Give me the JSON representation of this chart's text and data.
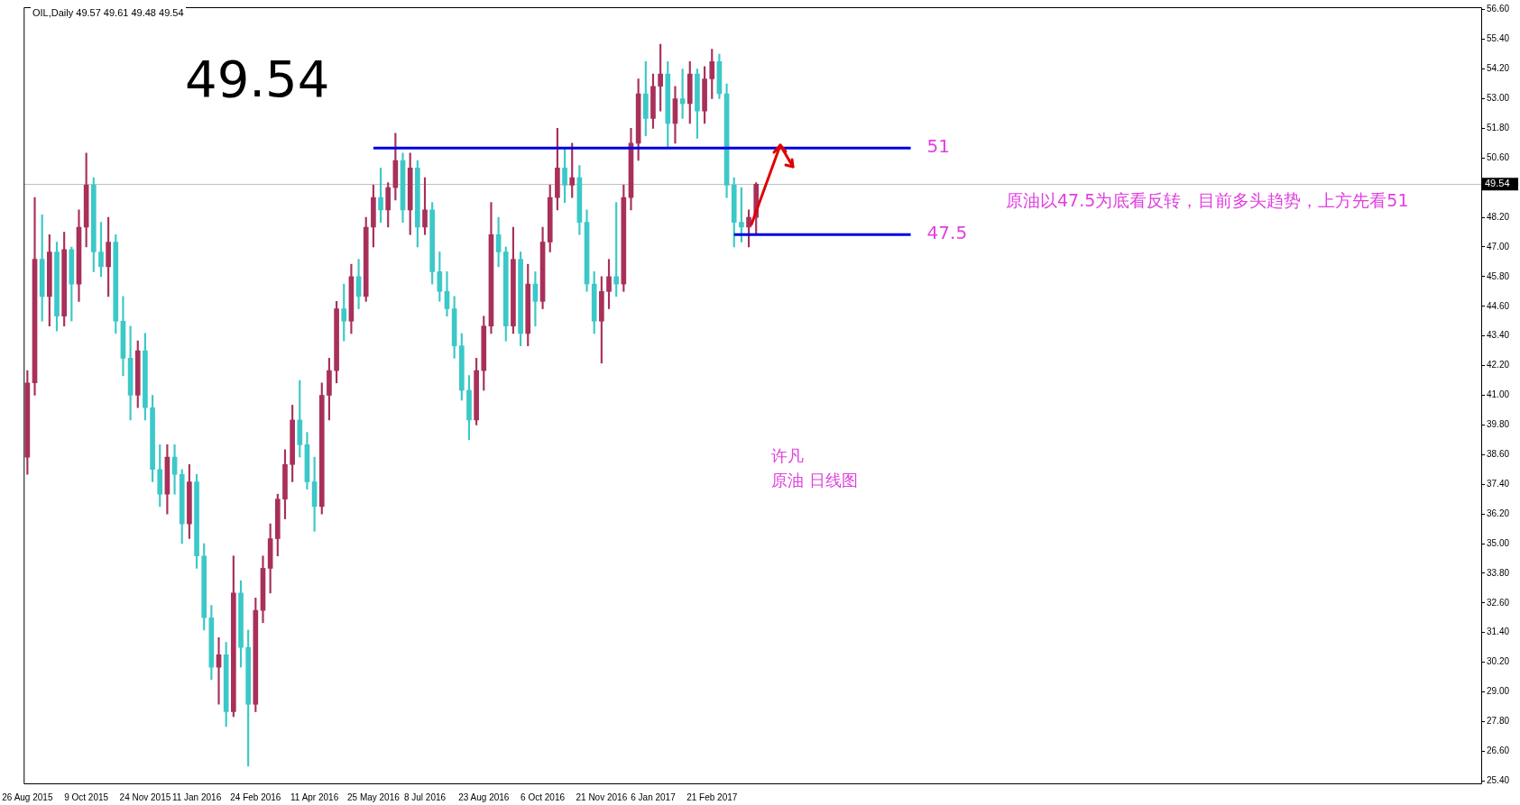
{
  "chart_data": {
    "type": "candlestick",
    "title": "OIL,Daily 49.57 49.61 49.48 49.54",
    "categories": [
      "26 Aug 2015",
      null,
      null,
      null,
      null,
      null,
      null,
      null,
      "9 Oct 2015",
      null,
      null,
      null,
      null,
      null,
      null,
      null,
      "24 Nov 2015",
      null,
      null,
      null,
      null,
      null,
      null,
      "11 Jan 2016",
      null,
      null,
      null,
      null,
      null,
      null,
      null,
      "24 Feb 2016",
      null,
      null,
      null,
      null,
      null,
      null,
      null,
      "11 Apr 2016",
      null,
      null,
      null,
      null,
      null,
      null,
      null,
      "25 May 2016",
      null,
      null,
      null,
      null,
      null,
      null,
      "8 Jul 2016",
      null,
      null,
      null,
      null,
      null,
      null,
      null,
      "23 Aug 2016",
      null,
      null,
      null,
      null,
      null,
      null,
      null,
      "6 Oct 2016",
      null,
      null,
      null,
      null,
      null,
      null,
      null,
      "21 Nov 2016",
      null,
      null,
      null,
      null,
      null,
      null,
      "6 Jan 2017",
      null,
      null,
      null,
      null,
      null,
      null,
      null,
      "21 Feb 2017",
      null,
      null,
      null,
      null,
      null,
      null,
      null,
      null,
      null,
      null,
      null,
      null,
      null,
      null,
      null,
      null,
      null,
      null,
      null,
      null,
      null,
      null,
      null,
      null,
      null,
      null,
      null,
      null,
      null,
      null,
      null,
      null,
      null,
      null,
      null,
      null,
      null,
      null,
      null,
      null,
      null,
      null,
      null,
      null,
      null,
      null,
      null,
      null,
      null,
      null,
      null,
      null,
      null,
      null,
      null,
      null,
      null,
      null,
      null,
      null,
      null,
      null,
      null,
      null,
      null,
      null,
      null,
      null,
      null,
      null,
      null,
      null,
      null,
      null,
      null,
      null,
      null,
      null,
      null,
      null,
      null,
      null,
      null,
      null,
      null,
      null,
      null,
      null,
      null,
      null,
      null,
      null,
      null,
      null,
      null,
      null,
      null,
      null,
      null,
      null,
      null,
      null,
      null,
      null
    ],
    "ohlc": [
      [
        38.5,
        42.0,
        37.8,
        41.5
      ],
      [
        41.5,
        49.0,
        41.0,
        46.5
      ],
      [
        46.5,
        48.3,
        44.0,
        45.0
      ],
      [
        45.0,
        47.5,
        43.8,
        46.8
      ],
      [
        46.8,
        47.2,
        43.6,
        44.2
      ],
      [
        44.2,
        47.6,
        43.8,
        46.9
      ],
      [
        46.9,
        47.0,
        44.0,
        45.5
      ],
      [
        45.5,
        48.5,
        44.8,
        47.8
      ],
      [
        47.8,
        50.8,
        47.0,
        49.5
      ],
      [
        49.5,
        49.8,
        46.0,
        46.8
      ],
      [
        46.8,
        48.0,
        45.8,
        46.2
      ],
      [
        46.2,
        48.2,
        45.0,
        47.2
      ],
      [
        47.2,
        47.5,
        43.5,
        44.0
      ],
      [
        44.0,
        45.0,
        41.8,
        42.5
      ],
      [
        42.5,
        43.8,
        40.0,
        41.0
      ],
      [
        41.0,
        43.2,
        40.5,
        42.8
      ],
      [
        42.8,
        43.5,
        40.0,
        40.5
      ],
      [
        40.5,
        41.0,
        37.5,
        38.0
      ],
      [
        38.0,
        39.0,
        36.5,
        37.0
      ],
      [
        37.0,
        39.0,
        36.2,
        38.5
      ],
      [
        38.5,
        39.0,
        37.0,
        37.8
      ],
      [
        37.8,
        38.0,
        35.0,
        35.8
      ],
      [
        35.8,
        38.2,
        35.2,
        37.5
      ],
      [
        37.5,
        37.8,
        34.0,
        34.5
      ],
      [
        34.5,
        35.0,
        31.5,
        32.0
      ],
      [
        32.0,
        32.5,
        29.5,
        30.0
      ],
      [
        30.0,
        31.2,
        28.5,
        30.5
      ],
      [
        30.5,
        31.0,
        27.6,
        28.2
      ],
      [
        28.2,
        34.5,
        28.0,
        33.0
      ],
      [
        33.0,
        33.5,
        30.0,
        30.8
      ],
      [
        30.8,
        31.5,
        26.0,
        28.5
      ],
      [
        28.5,
        32.8,
        28.2,
        32.3
      ],
      [
        32.3,
        34.5,
        31.8,
        34.0
      ],
      [
        34.0,
        35.8,
        33.0,
        35.2
      ],
      [
        35.2,
        37.0,
        34.5,
        36.8
      ],
      [
        36.8,
        38.8,
        36.0,
        38.2
      ],
      [
        38.2,
        40.6,
        37.5,
        40.0
      ],
      [
        40.0,
        41.6,
        38.5,
        39.0
      ],
      [
        39.0,
        39.5,
        37.2,
        37.5
      ],
      [
        37.5,
        38.5,
        35.5,
        36.5
      ],
      [
        36.5,
        41.5,
        36.2,
        41.0
      ],
      [
        41.0,
        42.5,
        40.0,
        42.0
      ],
      [
        42.0,
        44.8,
        41.5,
        44.5
      ],
      [
        44.5,
        45.5,
        43.2,
        44.0
      ],
      [
        44.0,
        46.3,
        43.5,
        45.8
      ],
      [
        45.8,
        46.5,
        44.5,
        45.0
      ],
      [
        45.0,
        48.2,
        44.8,
        47.8
      ],
      [
        47.8,
        49.5,
        47.0,
        49.0
      ],
      [
        49.0,
        50.2,
        48.0,
        48.5
      ],
      [
        48.5,
        49.6,
        47.8,
        49.4
      ],
      [
        49.4,
        51.6,
        48.9,
        50.5
      ],
      [
        50.5,
        50.8,
        48.0,
        48.5
      ],
      [
        48.5,
        50.8,
        47.5,
        50.2
      ],
      [
        50.2,
        50.5,
        47.0,
        47.8
      ],
      [
        47.8,
        49.8,
        47.5,
        48.5
      ],
      [
        48.5,
        48.8,
        45.5,
        46.0
      ],
      [
        46.0,
        46.8,
        44.8,
        45.2
      ],
      [
        45.2,
        46.0,
        44.2,
        44.5
      ],
      [
        44.5,
        45.0,
        42.5,
        43.0
      ],
      [
        43.0,
        43.5,
        40.8,
        41.2
      ],
      [
        41.2,
        41.8,
        39.2,
        40.0
      ],
      [
        40.0,
        42.5,
        39.8,
        42.0
      ],
      [
        42.0,
        44.2,
        41.2,
        43.8
      ],
      [
        43.8,
        48.8,
        43.5,
        47.5
      ],
      [
        47.5,
        48.2,
        46.2,
        46.8
      ],
      [
        46.8,
        47.0,
        43.2,
        43.8
      ],
      [
        43.8,
        47.8,
        43.5,
        46.5
      ],
      [
        46.5,
        46.8,
        43.0,
        43.5
      ],
      [
        43.5,
        46.3,
        43.0,
        45.5
      ],
      [
        45.5,
        46.0,
        43.8,
        44.8
      ],
      [
        44.8,
        47.8,
        44.5,
        47.2
      ],
      [
        47.2,
        49.5,
        46.8,
        49.0
      ],
      [
        49.0,
        51.8,
        48.5,
        50.2
      ],
      [
        50.2,
        51.0,
        48.8,
        49.5
      ],
      [
        49.5,
        51.2,
        49.0,
        49.8
      ],
      [
        49.8,
        50.3,
        47.5,
        48.0
      ],
      [
        48.0,
        48.5,
        45.2,
        45.5
      ],
      [
        45.5,
        46.0,
        43.5,
        44.0
      ],
      [
        44.0,
        45.8,
        42.3,
        45.2
      ],
      [
        45.2,
        46.5,
        44.5,
        45.8
      ],
      [
        45.8,
        48.8,
        45.0,
        45.5
      ],
      [
        45.5,
        49.5,
        45.2,
        49.0
      ],
      [
        49.0,
        51.8,
        48.5,
        51.2
      ],
      [
        51.2,
        53.8,
        50.5,
        53.2
      ],
      [
        53.2,
        54.5,
        51.5,
        52.2
      ],
      [
        52.2,
        54.0,
        51.8,
        53.5
      ],
      [
        53.5,
        55.2,
        52.5,
        54.0
      ],
      [
        54.0,
        54.5,
        51.0,
        52.0
      ],
      [
        52.0,
        53.5,
        51.2,
        53.0
      ],
      [
        53.0,
        54.2,
        52.2,
        52.8
      ],
      [
        52.8,
        54.5,
        52.0,
        54.0
      ],
      [
        54.0,
        54.2,
        51.4,
        52.5
      ],
      [
        52.5,
        54.3,
        52.0,
        53.8
      ],
      [
        53.8,
        55.0,
        53.0,
        54.5
      ],
      [
        54.5,
        54.8,
        53.0,
        53.2
      ],
      [
        53.2,
        53.6,
        49.0,
        49.5
      ],
      [
        49.5,
        49.8,
        47.0,
        48.0
      ],
      [
        48.0,
        49.4,
        47.2,
        47.8
      ],
      [
        47.8,
        48.5,
        47.0,
        48.2
      ],
      [
        48.2,
        49.6,
        47.5,
        49.54
      ],
      null,
      null,
      null,
      null,
      null,
      null,
      null,
      null,
      null,
      null,
      null,
      null,
      null,
      null,
      null,
      null,
      null,
      null,
      null,
      null,
      null,
      null,
      null,
      null,
      null,
      null,
      null,
      null,
      null,
      null,
      null,
      null,
      null,
      null,
      null,
      null,
      null,
      null,
      null,
      null,
      null,
      null,
      null,
      null,
      null,
      null,
      null,
      null,
      null,
      null,
      null,
      null,
      null,
      null,
      null,
      null,
      null,
      null,
      null,
      null,
      null,
      null,
      null,
      null,
      null,
      null,
      null,
      null,
      null,
      null,
      null,
      null,
      null,
      null,
      null,
      null,
      null,
      null,
      null,
      null,
      null,
      null,
      null,
      null,
      null,
      null,
      null,
      null,
      null,
      null,
      null,
      null,
      null,
      null,
      null,
      null,
      null,
      null
    ],
    "colors": [
      "#a8305a",
      "#a8305a",
      "#3cc8c8",
      "#a8305a",
      "#3cc8c8",
      "#a8305a",
      "#3cc8c8",
      "#a8305a",
      "#a8305a",
      "#3cc8c8",
      "#3cc8c8",
      "#a8305a",
      "#3cc8c8",
      "#3cc8c8",
      "#3cc8c8",
      "#a8305a",
      "#3cc8c8",
      "#3cc8c8",
      "#3cc8c8",
      "#a8305a",
      "#3cc8c8",
      "#3cc8c8",
      "#a8305a",
      "#3cc8c8",
      "#3cc8c8",
      "#3cc8c8",
      "#a8305a",
      "#3cc8c8",
      "#a8305a",
      "#3cc8c8",
      "#3cc8c8",
      "#a8305a",
      "#a8305a",
      "#a8305a",
      "#a8305a",
      "#a8305a",
      "#a8305a",
      "#3cc8c8",
      "#3cc8c8",
      "#3cc8c8",
      "#a8305a",
      "#a8305a",
      "#a8305a",
      "#3cc8c8",
      "#a8305a",
      "#3cc8c8",
      "#a8305a",
      "#a8305a",
      "#3cc8c8",
      "#a8305a",
      "#a8305a",
      "#3cc8c8",
      "#a8305a",
      "#3cc8c8",
      "#a8305a",
      "#3cc8c8",
      "#3cc8c8",
      "#3cc8c8",
      "#3cc8c8",
      "#3cc8c8",
      "#3cc8c8",
      "#a8305a",
      "#a8305a",
      "#a8305a",
      "#3cc8c8",
      "#3cc8c8",
      "#a8305a",
      "#3cc8c8",
      "#a8305a",
      "#3cc8c8",
      "#a8305a",
      "#a8305a",
      "#a8305a",
      "#3cc8c8",
      "#a8305a",
      "#3cc8c8",
      "#3cc8c8",
      "#3cc8c8",
      "#a8305a",
      "#a8305a",
      "#3cc8c8",
      "#a8305a",
      "#a8305a",
      "#a8305a",
      "#3cc8c8",
      "#a8305a",
      "#a8305a",
      "#3cc8c8",
      "#a8305a",
      "#3cc8c8",
      "#a8305a",
      "#3cc8c8",
      "#a8305a",
      "#a8305a",
      "#3cc8c8",
      "#3cc8c8",
      "#3cc8c8",
      "#3cc8c8",
      "#a8305a",
      "#a8305a",
      null,
      null,
      null,
      null,
      null,
      null,
      null,
      null,
      null,
      null,
      null,
      null,
      null,
      null,
      null,
      null,
      null,
      null,
      null,
      null,
      null,
      null,
      null,
      null,
      null,
      null,
      null,
      null,
      null,
      null,
      null,
      null,
      null,
      null,
      null,
      null,
      null,
      null,
      null,
      null,
      null,
      null,
      null,
      null,
      null,
      null,
      null,
      null,
      null,
      null,
      null,
      null,
      null,
      null,
      null,
      null,
      null,
      null,
      null,
      null,
      null,
      null,
      null,
      null,
      null,
      null,
      null,
      null,
      null,
      null,
      null,
      null,
      null,
      null,
      null,
      null,
      null,
      null,
      null,
      null,
      null,
      null,
      null,
      null,
      null,
      null,
      null,
      null,
      null,
      null,
      null,
      null,
      null,
      null,
      null,
      null,
      null,
      null
    ],
    "ylim": [
      25.3,
      56.7
    ],
    "yticks": [
      {
        "value": 25.4,
        "label": "25.40"
      },
      {
        "value": 26.6,
        "label": "26.60"
      },
      {
        "value": 27.8,
        "label": "27.80"
      },
      {
        "value": 29,
        "label": "29.00"
      },
      {
        "value": 30.2,
        "label": "30.20"
      },
      {
        "value": 31.4,
        "label": "31.40"
      },
      {
        "value": 32.6,
        "label": "32.60"
      },
      {
        "value": 33.8,
        "label": "33.80"
      },
      {
        "value": 35,
        "label": "35.00"
      },
      {
        "value": 36.2,
        "label": "36.20"
      },
      {
        "value": 37.4,
        "label": "37.40"
      },
      {
        "value": 38.6,
        "label": "38.60"
      },
      {
        "value": 39.8,
        "label": "39.80"
      },
      {
        "value": 41,
        "label": "41.00"
      },
      {
        "value": 42.2,
        "label": "42.20"
      },
      {
        "value": 43.4,
        "label": "43.40"
      },
      {
        "value": 44.6,
        "label": "44.60"
      },
      {
        "value": 45.8,
        "label": "45.80"
      },
      {
        "value": 47,
        "label": "47.00"
      },
      {
        "value": 48.2,
        "label": "48.20"
      },
      {
        "value": 49.4,
        "label": null
      },
      {
        "value": 50.6,
        "label": "50.60"
      },
      {
        "value": 51.8,
        "label": "51.80"
      },
      {
        "value": 53,
        "label": "53.00"
      },
      {
        "value": 54.2,
        "label": "54.20"
      },
      {
        "value": 55.4,
        "label": "55.40"
      },
      {
        "value": 56.6,
        "label": "56.60"
      }
    ],
    "series": [
      {
        "name": "51",
        "type": "line",
        "color": "#0000e6",
        "values": [
          null,
          null,
          null,
          null,
          null,
          null,
          null,
          null,
          null,
          null,
          null,
          null,
          null,
          null,
          null,
          null,
          null,
          null,
          null,
          null,
          null,
          null,
          null,
          null,
          null,
          null,
          null,
          null,
          null,
          null,
          null,
          null,
          null,
          null,
          null,
          null,
          null,
          null,
          null,
          null,
          null,
          null,
          null,
          null,
          null,
          null,
          null,
          51,
          51,
          51,
          51,
          51,
          51,
          51,
          51,
          51,
          51,
          51,
          51,
          51,
          51,
          51,
          51,
          51,
          51,
          51,
          51,
          51,
          51,
          51,
          51,
          51,
          51,
          51,
          51,
          51,
          51,
          51,
          51,
          51,
          51,
          51,
          51,
          51,
          51,
          51,
          51,
          51,
          51,
          51,
          51,
          51,
          51,
          51,
          51,
          51,
          51,
          51,
          51,
          51,
          51,
          51,
          51,
          51,
          51,
          51,
          51,
          51,
          51,
          51,
          51,
          51,
          51,
          51,
          51,
          51,
          51,
          51,
          51,
          51,
          51,
          null,
          null,
          null,
          null,
          null,
          null,
          null,
          null,
          null,
          null,
          null,
          null,
          null,
          null,
          null,
          null,
          null,
          null,
          null,
          null,
          null,
          null,
          null,
          null,
          null,
          null,
          null,
          null,
          null,
          null,
          null,
          null,
          null,
          null,
          null,
          null,
          null,
          null,
          null,
          null,
          null,
          null,
          null,
          null,
          null,
          null,
          null,
          null,
          null,
          null,
          null,
          null,
          null,
          null,
          null,
          null,
          null,
          null,
          null,
          null,
          null,
          null,
          null,
          null,
          null,
          null,
          null,
          null,
          null,
          null,
          null,
          null,
          null,
          null,
          null,
          null,
          null
        ]
      },
      {
        "name": "47.5",
        "type": "line",
        "color": "#0000e6",
        "values": [
          null,
          null,
          null,
          null,
          null,
          null,
          null,
          null,
          null,
          null,
          null,
          null,
          null,
          null,
          null,
          null,
          null,
          null,
          null,
          null,
          null,
          null,
          null,
          null,
          null,
          null,
          null,
          null,
          null,
          null,
          null,
          null,
          null,
          null,
          null,
          null,
          null,
          null,
          null,
          null,
          null,
          null,
          null,
          null,
          null,
          null,
          null,
          null,
          null,
          null,
          null,
          null,
          null,
          null,
          null,
          null,
          null,
          null,
          null,
          null,
          null,
          null,
          null,
          null,
          null,
          null,
          null,
          null,
          null,
          null,
          null,
          null,
          null,
          null,
          null,
          null,
          null,
          null,
          null,
          null,
          null,
          null,
          null,
          null,
          null,
          null,
          null,
          null,
          null,
          null,
          null,
          null,
          null,
          null,
          null,
          null,
          47.5,
          47.5,
          47.5,
          47.5,
          47.5,
          47.5,
          47.5,
          47.5,
          47.5,
          47.5,
          47.5,
          47.5,
          47.5,
          47.5,
          47.5,
          47.5,
          47.5,
          47.5,
          47.5,
          47.5,
          47.5,
          47.5,
          47.5,
          47.5,
          47.5,
          null,
          null,
          null,
          null,
          null,
          null,
          null,
          null,
          null,
          null,
          null,
          null,
          null,
          null,
          null,
          null,
          null,
          null,
          null,
          null,
          null,
          null,
          null,
          null,
          null,
          null,
          null,
          null,
          null,
          null,
          null,
          null,
          null,
          null,
          null,
          null,
          null,
          null,
          null,
          null,
          null,
          null,
          null,
          null,
          null,
          null,
          null,
          null,
          null,
          null,
          null,
          null,
          null,
          null,
          null,
          null,
          null,
          null,
          null,
          null,
          null,
          null,
          null,
          null,
          null,
          null,
          null,
          null,
          null,
          null,
          null,
          null,
          null,
          null,
          null,
          null,
          null
        ]
      }
    ],
    "ref_lines": [
      {
        "axis": "y",
        "value": 49.54,
        "label": "49.54",
        "color": "#c0c0c0"
      }
    ],
    "annotations": [
      "49.54",
      "原油以47.5为底看反转，目前多头趋势，上方先看51",
      "许凡",
      "原油 日线图"
    ],
    "grid": false,
    "legend": false
  }
}
